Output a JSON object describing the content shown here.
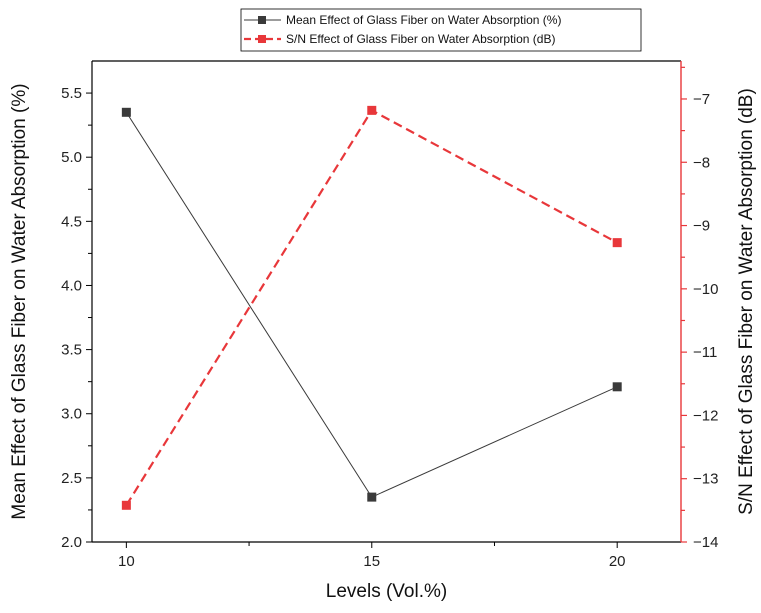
{
  "chart_data": {
    "type": "line",
    "x": [
      10,
      15,
      20
    ],
    "xlabel": "Levels (Vol.%)",
    "xticks": [
      10,
      15,
      20
    ],
    "xlim": [
      9.3,
      21.3
    ],
    "legend_position": "top-center",
    "grid": false,
    "series": [
      {
        "name": "Mean Effect of Glass Fiber on Water Absorption (%)",
        "axis": "left",
        "values": [
          5.35,
          2.35,
          3.21
        ],
        "color": "#3a3a3a",
        "line_style": "solid",
        "marker": "square"
      },
      {
        "name": "S/N Effect of Glass Fiber on Water Absorption (dB)",
        "axis": "right",
        "values": [
          -13.42,
          -7.18,
          -9.27
        ],
        "color": "#e8373a",
        "line_style": "dashed",
        "marker": "square"
      }
    ],
    "y_left": {
      "label": "Mean Effect of Glass Fiber on Water Absorption (%)",
      "ylim": [
        2.0,
        5.75
      ],
      "ticks": [
        "2.0",
        "2.5",
        "3.0",
        "3.5",
        "4.0",
        "4.5",
        "5.0",
        "5.5"
      ],
      "color": "#000000"
    },
    "y_right": {
      "label": "S/N Effect of Glass Fiber on Water Absorption (dB)",
      "ylim": [
        -14,
        -6.4
      ],
      "ticks": [
        "-7",
        "-8",
        "-9",
        "-10",
        "-11",
        "-12",
        "-13",
        "-14"
      ],
      "color": "#e8373a"
    }
  }
}
